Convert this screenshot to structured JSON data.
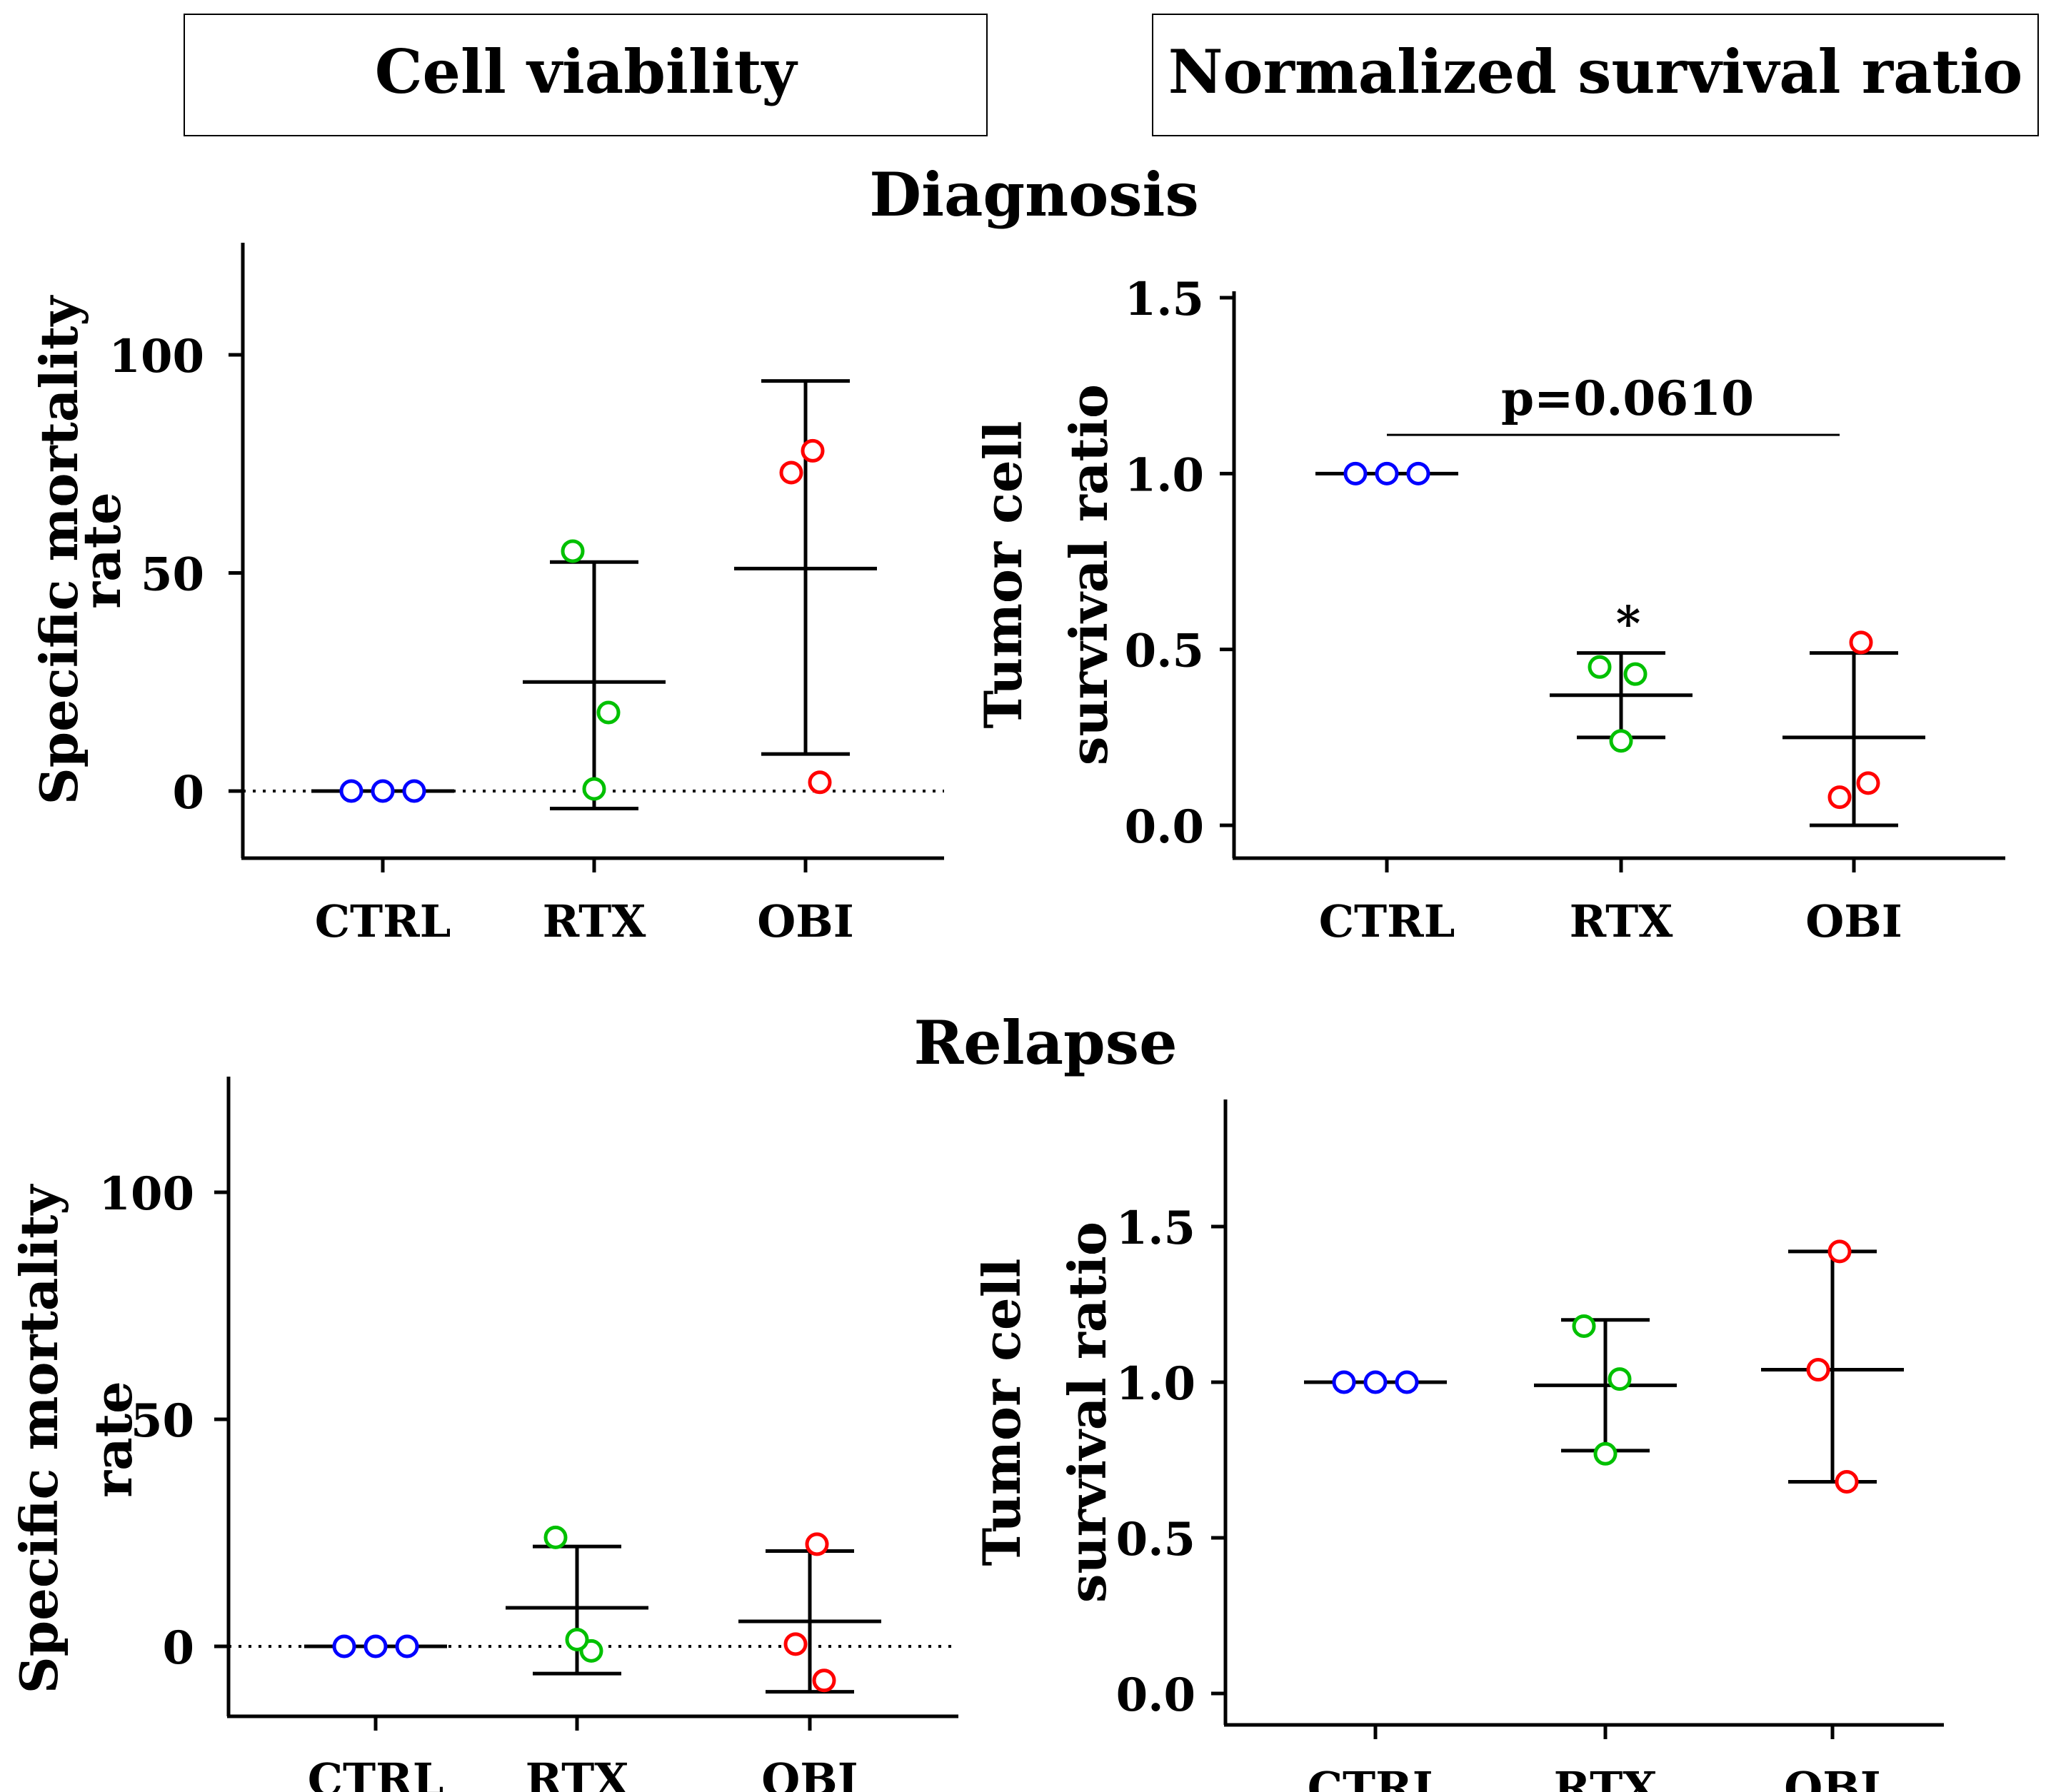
{
  "headers": {
    "left": "Cell viability",
    "right": "Normalized survival ratio"
  },
  "sections": {
    "top": "Diagnosis",
    "bottom": "Relapse"
  },
  "colors": {
    "CTRL": "#0000ff",
    "RTX": "#00c000",
    "OBI": "#ff0000",
    "axis": "#000000"
  },
  "chart_data": [
    {
      "id": "diag_viability",
      "section": "Diagnosis",
      "type": "scatter",
      "subtype": "mean_with_sd_dot_plot",
      "ylabel": [
        "Specific mortality",
        "rate"
      ],
      "categories": [
        "CTRL",
        "RTX",
        "OBI"
      ],
      "yticks": [
        0,
        50,
        100
      ],
      "ylim": [
        -15,
        125
      ],
      "reference_line": 0,
      "series": [
        {
          "name": "CTRL",
          "points": [
            0,
            0,
            0
          ],
          "mean": 0,
          "low": 0,
          "high": 0
        },
        {
          "name": "RTX",
          "points": [
            55,
            18,
            0.5
          ],
          "mean": 25,
          "low": -4,
          "high": 52.5
        },
        {
          "name": "OBI",
          "points": [
            78,
            73,
            2
          ],
          "mean": 51,
          "low": 8.5,
          "high": 94
        }
      ]
    },
    {
      "id": "diag_survival",
      "section": "Diagnosis",
      "type": "scatter",
      "subtype": "mean_with_sd_dot_plot",
      "ylabel": [
        "Tumor cell",
        "survival ratio"
      ],
      "categories": [
        "CTRL",
        "RTX",
        "OBI"
      ],
      "yticks": [
        "0.0",
        "0.5",
        "1.0",
        "1.5"
      ],
      "ylim": [
        -0.1,
        1.5
      ],
      "series": [
        {
          "name": "CTRL",
          "points": [
            1.0,
            1.0,
            1.0
          ],
          "mean": 1.0,
          "low": 1.0,
          "high": 1.0
        },
        {
          "name": "RTX",
          "points": [
            0.45,
            0.43,
            0.24
          ],
          "mean": 0.37,
          "low": 0.25,
          "high": 0.49
        },
        {
          "name": "OBI",
          "points": [
            0.52,
            0.08,
            0.12
          ],
          "mean": 0.25,
          "low": 0.0,
          "high": 0.49
        }
      ],
      "annotations": {
        "bracket_label": "p=0.0610",
        "bracket_from": "CTRL",
        "bracket_to": "OBI",
        "bracket_y": 1.11,
        "star": "*",
        "star_category": "RTX",
        "star_y": 0.58
      }
    },
    {
      "id": "relapse_viability",
      "section": "Relapse",
      "type": "scatter",
      "subtype": "mean_with_sd_dot_plot",
      "ylabel": [
        "Specific mortality",
        "rate"
      ],
      "categories": [
        "CTRL",
        "RTX",
        "OBI"
      ],
      "yticks": [
        0,
        50,
        100
      ],
      "ylim": [
        -15,
        125
      ],
      "reference_line": 0,
      "series": [
        {
          "name": "CTRL",
          "points": [
            0,
            0,
            0
          ],
          "mean": 0,
          "low": 0,
          "high": 0
        },
        {
          "name": "RTX",
          "points": [
            24,
            -1,
            1.5
          ],
          "mean": 8.5,
          "low": -6,
          "high": 22
        },
        {
          "name": "OBI",
          "points": [
            22.5,
            0.5,
            -7.5
          ],
          "mean": 5.5,
          "low": -10,
          "high": 21
        }
      ]
    },
    {
      "id": "relapse_survival",
      "section": "Relapse",
      "type": "scatter",
      "subtype": "mean_with_sd_dot_plot",
      "ylabel": [
        "Tumor cell",
        "survival ratio"
      ],
      "categories": [
        "CTRL",
        "RTX",
        "OBI"
      ],
      "yticks": [
        "0.0",
        "0.5",
        "1.0",
        "1.5"
      ],
      "ylim": [
        -0.1,
        1.9
      ],
      "series": [
        {
          "name": "CTRL",
          "points": [
            1.0,
            1.0,
            1.0
          ],
          "mean": 1.0,
          "low": 1.0,
          "high": 1.0
        },
        {
          "name": "RTX",
          "points": [
            1.18,
            1.01,
            0.77
          ],
          "mean": 0.99,
          "low": 0.78,
          "high": 1.2
        },
        {
          "name": "OBI",
          "points": [
            1.42,
            1.04,
            0.68
          ],
          "mean": 1.04,
          "low": 0.68,
          "high": 1.42
        }
      ]
    }
  ]
}
